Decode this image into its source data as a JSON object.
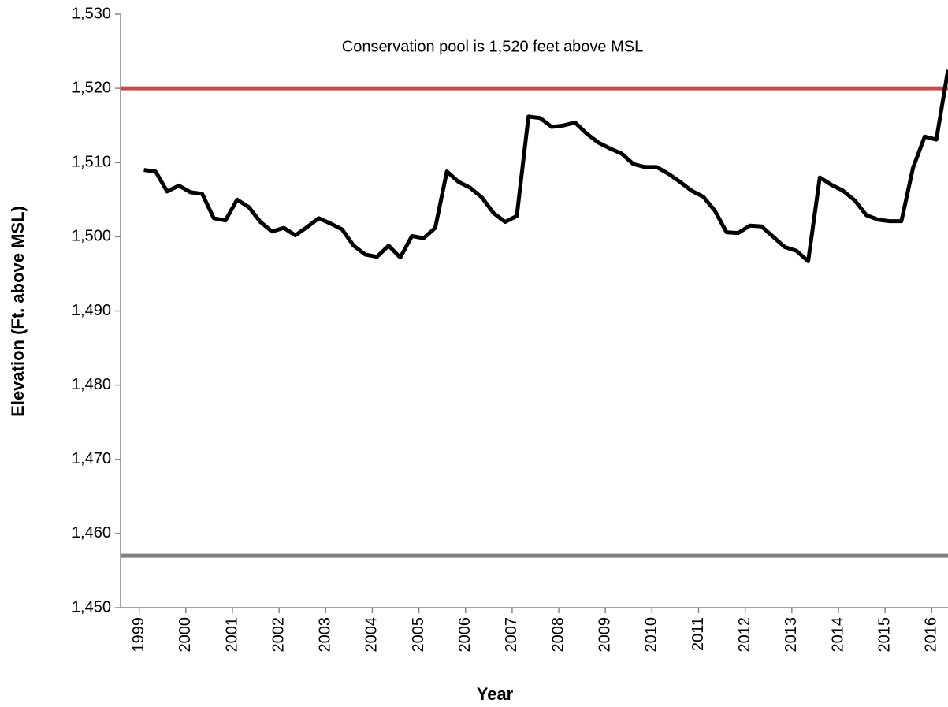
{
  "chart_data": {
    "type": "line",
    "annotation": "Conservation pool is 1,520 feet above MSL",
    "x_label": "Year",
    "y_label": "Elevation (Ft. above MSL)",
    "x": [
      1999.1,
      1999.35,
      1999.6,
      1999.85,
      2000.1,
      2000.35,
      2000.6,
      2000.85,
      2001.1,
      2001.35,
      2001.6,
      2001.85,
      2002.1,
      2002.35,
      2002.6,
      2002.85,
      2003.1,
      2003.35,
      2003.6,
      2003.85,
      2004.1,
      2004.35,
      2004.6,
      2004.85,
      2005.1,
      2005.35,
      2005.6,
      2005.85,
      2006.1,
      2006.35,
      2006.6,
      2006.85,
      2007.1,
      2007.35,
      2007.6,
      2007.85,
      2008.1,
      2008.35,
      2008.6,
      2008.85,
      2009.1,
      2009.35,
      2009.6,
      2009.85,
      2010.1,
      2010.35,
      2010.6,
      2010.85,
      2011.1,
      2011.35,
      2011.6,
      2011.85,
      2012.1,
      2012.35,
      2012.6,
      2012.85,
      2013.1,
      2013.35,
      2013.6,
      2013.85,
      2014.1,
      2014.35,
      2014.6,
      2014.85,
      2015.1,
      2015.35,
      2015.6,
      2015.85,
      2016.1,
      2016.35
    ],
    "series": [
      {
        "color": "#000000",
        "values": [
          1509.0,
          1508.8,
          1506.1,
          1506.9,
          1506.0,
          1505.8,
          1502.5,
          1502.2,
          1505.0,
          1504.0,
          1502.0,
          1500.7,
          1501.2,
          1500.2,
          1501.3,
          1502.5,
          1501.8,
          1501.0,
          1498.8,
          1497.6,
          1497.3,
          1498.8,
          1497.2,
          1500.1,
          1499.8,
          1501.2,
          1508.8,
          1507.4,
          1506.6,
          1505.3,
          1503.2,
          1502.0,
          1502.8,
          1516.2,
          1516.0,
          1514.8,
          1515.0,
          1515.4,
          1513.9,
          1512.7,
          1511.9,
          1511.2,
          1509.8,
          1509.4,
          1509.4,
          1508.5,
          1507.4,
          1506.2,
          1505.4,
          1503.5,
          1500.6,
          1500.5,
          1501.5,
          1501.4,
          1500.0,
          1498.6,
          1498.1,
          1496.7,
          1508.0,
          1507.0,
          1506.2,
          1504.9,
          1502.9,
          1502.3,
          1502.1,
          1502.1,
          1509.3,
          1513.5,
          1513.1,
          1522.5
        ]
      }
    ],
    "reference_lines": [
      {
        "value": 1520,
        "color": "#c0504d"
      },
      {
        "value": 1457,
        "color": "#808080"
      }
    ],
    "xlim": [
      1998.6,
      2016.35
    ],
    "xticks": [
      1999,
      2000,
      2001,
      2002,
      2003,
      2004,
      2005,
      2006,
      2007,
      2008,
      2009,
      2010,
      2011,
      2012,
      2013,
      2014,
      2015,
      2016
    ],
    "ylim": [
      1450,
      1530
    ],
    "yticks": [
      {
        "value": 1450,
        "label": "1,450"
      },
      {
        "value": 1460,
        "label": "1,460"
      },
      {
        "value": 1470,
        "label": "1,470"
      },
      {
        "value": 1480,
        "label": "1,480"
      },
      {
        "value": 1490,
        "label": "1,490"
      },
      {
        "value": 1500,
        "label": "1,500"
      },
      {
        "value": 1510,
        "label": "1,510"
      },
      {
        "value": 1520,
        "label": "1,520"
      },
      {
        "value": 1530,
        "label": "1,530"
      }
    ]
  }
}
